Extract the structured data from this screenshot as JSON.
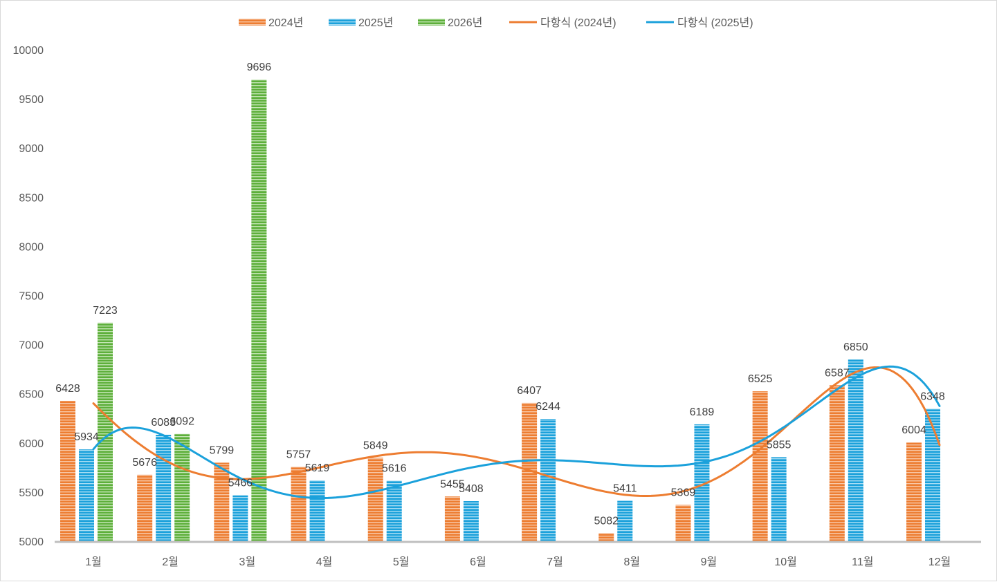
{
  "chart_data": {
    "type": "bar",
    "title": "",
    "xlabel": "",
    "ylabel": "",
    "ylim": [
      5000,
      10000
    ],
    "yticks": [
      5000,
      5500,
      6000,
      6500,
      7000,
      7500,
      8000,
      8500,
      9000,
      9500,
      10000
    ],
    "grid": false,
    "legend_position": "top",
    "categories": [
      "1월",
      "2월",
      "3월",
      "4월",
      "5월",
      "6월",
      "7월",
      "8월",
      "9월",
      "10월",
      "11월",
      "12월"
    ],
    "series": [
      {
        "name": "2024년",
        "color": "#ED7D31",
        "values": [
          6428,
          5676,
          5799,
          5757,
          5849,
          5455,
          6407,
          5082,
          5369,
          6525,
          6587,
          6004
        ]
      },
      {
        "name": "2025년",
        "color": "#1BA1DB",
        "values": [
          5934,
          6083,
          5466,
          5619,
          5616,
          5408,
          6244,
          5411,
          6189,
          5855,
          6850,
          6348
        ]
      },
      {
        "name": "2026년",
        "color": "#5DAF3A",
        "values": [
          7223,
          6092,
          9696,
          null,
          null,
          null,
          null,
          null,
          null,
          null,
          null,
          null
        ]
      }
    ],
    "trendlines": [
      {
        "name": "다항식 (2024년)",
        "series": "2024년",
        "type": "polynomial",
        "order": 6,
        "color": "#ED7D31"
      },
      {
        "name": "다항식 (2025년)",
        "series": "2025년",
        "type": "polynomial",
        "order": 6,
        "color": "#1BA1DB"
      }
    ],
    "legend": [
      "2024년",
      "2025년",
      "2026년",
      "다항식 (2024년)",
      "다항식 (2025년)"
    ]
  }
}
